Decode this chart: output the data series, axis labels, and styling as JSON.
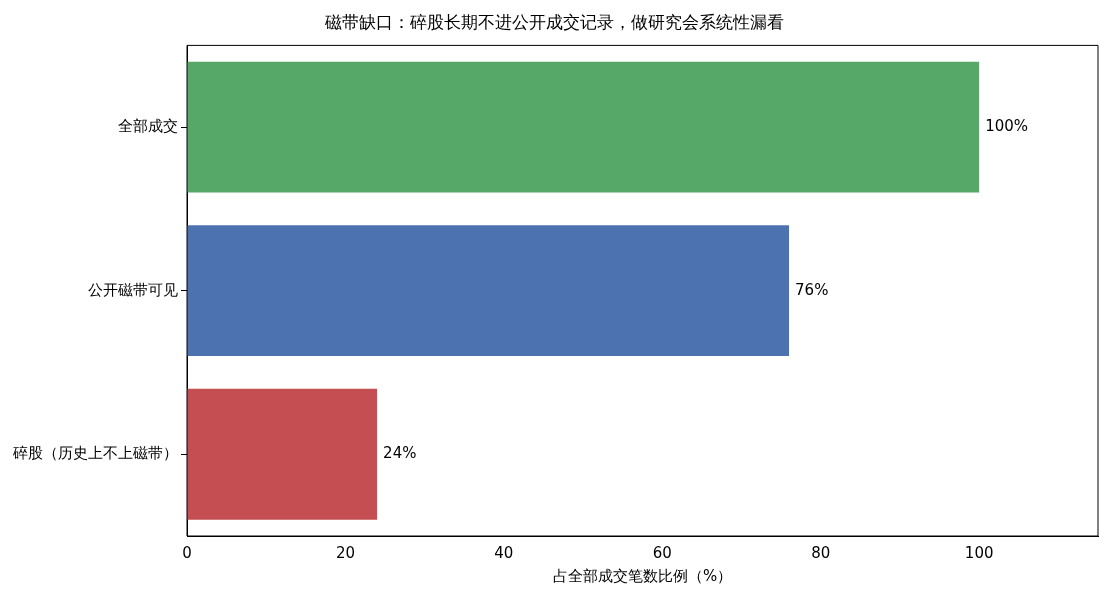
{
  "chart_data": {
    "type": "bar",
    "orientation": "horizontal",
    "title": "磁带缺口：碎股长期不进公开成交记录，做研究会系统性漏看",
    "xlabel": "占全部成交笔数比例（%）",
    "categories": [
      "全部成交",
      "公开磁带可见",
      "碎股（历史上不上磁带）"
    ],
    "values": [
      100,
      76,
      24
    ],
    "colors": [
      "#55a868",
      "#4c72b0",
      "#c44e52"
    ],
    "value_labels": [
      "100%",
      "76%",
      "24%"
    ],
    "xlim": [
      0,
      115
    ],
    "xticks": [
      0,
      20,
      40,
      60,
      80,
      100
    ],
    "grid": false,
    "legend": false
  }
}
